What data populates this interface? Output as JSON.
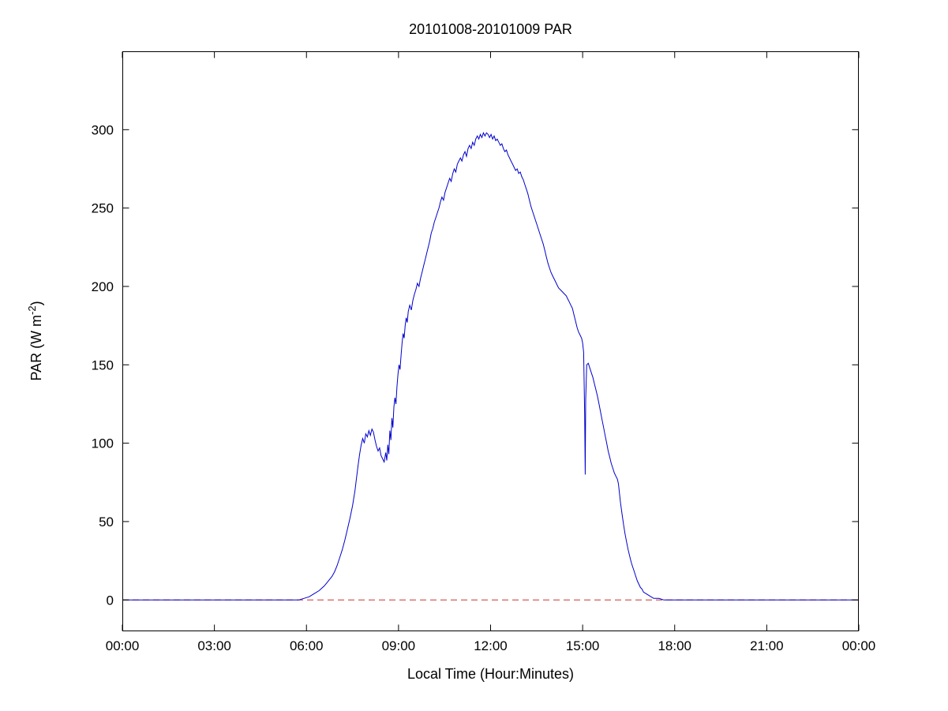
{
  "figure": {
    "background": "#ffffff"
  },
  "chart_data": {
    "type": "line",
    "title": "20101008-20101009 PAR",
    "xlabel": "Local Time (Hour:Minutes)",
    "ylabel": {
      "prefix": "PAR (W m",
      "sup": "-2",
      "suffix": ")"
    },
    "xlim": [
      0,
      1440
    ],
    "ylim": [
      -20,
      350
    ],
    "x_units": "minutes since 00:00 local",
    "grid": false,
    "legend": "none",
    "x_ticks": {
      "values": [
        0,
        180,
        360,
        540,
        720,
        900,
        1080,
        1260,
        1440
      ],
      "labels": [
        "00:00",
        "03:00",
        "06:00",
        "09:00",
        "12:00",
        "15:00",
        "18:00",
        "21:00",
        "00:00"
      ]
    },
    "y_ticks": {
      "values": [
        0,
        50,
        100,
        150,
        200,
        250,
        300
      ],
      "labels": [
        "0",
        "50",
        "100",
        "150",
        "200",
        "250",
        "300"
      ]
    },
    "zero_line": {
      "y": 0,
      "style": "dashed",
      "color": "#cc3333"
    },
    "series": [
      {
        "name": "PAR",
        "color": "#0000cc",
        "points": [
          [
            0,
            0
          ],
          [
            60,
            0
          ],
          [
            120,
            0
          ],
          [
            180,
            0
          ],
          [
            240,
            0
          ],
          [
            300,
            0
          ],
          [
            330,
            0
          ],
          [
            345,
            0
          ],
          [
            355,
            1
          ],
          [
            365,
            2
          ],
          [
            375,
            4
          ],
          [
            385,
            6
          ],
          [
            395,
            9
          ],
          [
            400,
            11
          ],
          [
            405,
            13
          ],
          [
            410,
            15
          ],
          [
            415,
            18
          ],
          [
            420,
            22
          ],
          [
            425,
            27
          ],
          [
            430,
            32
          ],
          [
            435,
            38
          ],
          [
            440,
            45
          ],
          [
            445,
            52
          ],
          [
            450,
            60
          ],
          [
            455,
            70
          ],
          [
            458,
            78
          ],
          [
            461,
            86
          ],
          [
            464,
            93
          ],
          [
            467,
            99
          ],
          [
            470,
            103
          ],
          [
            473,
            100
          ],
          [
            476,
            106
          ],
          [
            479,
            104
          ],
          [
            482,
            108
          ],
          [
            485,
            105
          ],
          [
            488,
            109
          ],
          [
            491,
            107
          ],
          [
            494,
            102
          ],
          [
            497,
            98
          ],
          [
            500,
            95
          ],
          [
            503,
            97
          ],
          [
            506,
            92
          ],
          [
            509,
            90
          ],
          [
            512,
            88
          ],
          [
            515,
            94
          ],
          [
            517,
            89
          ],
          [
            519,
            99
          ],
          [
            521,
            93
          ],
          [
            523,
            108
          ],
          [
            525,
            102
          ],
          [
            527,
            116
          ],
          [
            529,
            110
          ],
          [
            531,
            123
          ],
          [
            533,
            129
          ],
          [
            535,
            125
          ],
          [
            537,
            136
          ],
          [
            539,
            144
          ],
          [
            541,
            150
          ],
          [
            543,
            147
          ],
          [
            545,
            156
          ],
          [
            547,
            164
          ],
          [
            549,
            170
          ],
          [
            551,
            167
          ],
          [
            553,
            175
          ],
          [
            555,
            180
          ],
          [
            557,
            177
          ],
          [
            559,
            184
          ],
          [
            562,
            188
          ],
          [
            565,
            185
          ],
          [
            568,
            191
          ],
          [
            571,
            195
          ],
          [
            574,
            198
          ],
          [
            577,
            202
          ],
          [
            580,
            200
          ],
          [
            583,
            205
          ],
          [
            586,
            209
          ],
          [
            589,
            213
          ],
          [
            592,
            217
          ],
          [
            595,
            221
          ],
          [
            598,
            225
          ],
          [
            601,
            229
          ],
          [
            604,
            234
          ],
          [
            607,
            237
          ],
          [
            610,
            241
          ],
          [
            613,
            244
          ],
          [
            616,
            247
          ],
          [
            619,
            250
          ],
          [
            622,
            254
          ],
          [
            625,
            257
          ],
          [
            628,
            255
          ],
          [
            631,
            260
          ],
          [
            634,
            263
          ],
          [
            637,
            266
          ],
          [
            640,
            269
          ],
          [
            643,
            267
          ],
          [
            646,
            272
          ],
          [
            649,
            275
          ],
          [
            652,
            273
          ],
          [
            655,
            278
          ],
          [
            658,
            280
          ],
          [
            661,
            282
          ],
          [
            664,
            280
          ],
          [
            667,
            284
          ],
          [
            670,
            286
          ],
          [
            673,
            283
          ],
          [
            676,
            288
          ],
          [
            679,
            290
          ],
          [
            682,
            288
          ],
          [
            685,
            292
          ],
          [
            688,
            290
          ],
          [
            691,
            294
          ],
          [
            694,
            296
          ],
          [
            697,
            294
          ],
          [
            700,
            297
          ],
          [
            703,
            295
          ],
          [
            706,
            298
          ],
          [
            709,
            296
          ],
          [
            712,
            298
          ],
          [
            715,
            297
          ],
          [
            718,
            295
          ],
          [
            721,
            297
          ],
          [
            724,
            294
          ],
          [
            727,
            296
          ],
          [
            730,
            293
          ],
          [
            733,
            294
          ],
          [
            736,
            292
          ],
          [
            739,
            290
          ],
          [
            742,
            291
          ],
          [
            745,
            288
          ],
          [
            748,
            286
          ],
          [
            751,
            287
          ],
          [
            754,
            284
          ],
          [
            757,
            282
          ],
          [
            760,
            280
          ],
          [
            763,
            278
          ],
          [
            766,
            276
          ],
          [
            769,
            274
          ],
          [
            772,
            275
          ],
          [
            775,
            272
          ],
          [
            778,
            273
          ],
          [
            781,
            270
          ],
          [
            784,
            268
          ],
          [
            787,
            265
          ],
          [
            790,
            262
          ],
          [
            793,
            259
          ],
          [
            796,
            255
          ],
          [
            799,
            251
          ],
          [
            802,
            248
          ],
          [
            805,
            245
          ],
          [
            808,
            242
          ],
          [
            811,
            239
          ],
          [
            814,
            236
          ],
          [
            817,
            233
          ],
          [
            820,
            230
          ],
          [
            823,
            227
          ],
          [
            826,
            223
          ],
          [
            829,
            219
          ],
          [
            832,
            215
          ],
          [
            835,
            212
          ],
          [
            838,
            209
          ],
          [
            841,
            207
          ],
          [
            844,
            205
          ],
          [
            847,
            203
          ],
          [
            850,
            201
          ],
          [
            853,
            199
          ],
          [
            856,
            198
          ],
          [
            859,
            197
          ],
          [
            862,
            196
          ],
          [
            865,
            195
          ],
          [
            868,
            194
          ],
          [
            871,
            192
          ],
          [
            874,
            190
          ],
          [
            877,
            188
          ],
          [
            880,
            186
          ],
          [
            883,
            182
          ],
          [
            886,
            178
          ],
          [
            889,
            174
          ],
          [
            892,
            171
          ],
          [
            895,
            169
          ],
          [
            898,
            167
          ],
          [
            900,
            164
          ],
          [
            902,
            158
          ],
          [
            904,
            118
          ],
          [
            905,
            80
          ],
          [
            906,
            128
          ],
          [
            908,
            150
          ],
          [
            911,
            151
          ],
          [
            914,
            148
          ],
          [
            917,
            145
          ],
          [
            920,
            142
          ],
          [
            923,
            138
          ],
          [
            926,
            134
          ],
          [
            929,
            130
          ],
          [
            932,
            125
          ],
          [
            935,
            120
          ],
          [
            938,
            115
          ],
          [
            941,
            110
          ],
          [
            944,
            105
          ],
          [
            947,
            100
          ],
          [
            950,
            95
          ],
          [
            953,
            91
          ],
          [
            956,
            87
          ],
          [
            959,
            84
          ],
          [
            962,
            81
          ],
          [
            965,
            79
          ],
          [
            968,
            77
          ],
          [
            970,
            74
          ],
          [
            972,
            68
          ],
          [
            974,
            62
          ],
          [
            977,
            55
          ],
          [
            980,
            48
          ],
          [
            983,
            42
          ],
          [
            986,
            37
          ],
          [
            989,
            32
          ],
          [
            992,
            28
          ],
          [
            995,
            24
          ],
          [
            998,
            21
          ],
          [
            1001,
            18
          ],
          [
            1004,
            15
          ],
          [
            1007,
            12
          ],
          [
            1010,
            10
          ],
          [
            1013,
            8
          ],
          [
            1016,
            7
          ],
          [
            1019,
            5
          ],
          [
            1024,
            4
          ],
          [
            1029,
            3
          ],
          [
            1034,
            2
          ],
          [
            1039,
            1
          ],
          [
            1049,
            1
          ],
          [
            1059,
            0
          ],
          [
            1080,
            0
          ],
          [
            1110,
            0
          ],
          [
            1140,
            0
          ],
          [
            1170,
            0
          ],
          [
            1200,
            0
          ],
          [
            1230,
            0
          ],
          [
            1260,
            0
          ],
          [
            1290,
            0
          ],
          [
            1320,
            0
          ],
          [
            1350,
            0
          ],
          [
            1380,
            0
          ],
          [
            1410,
            0
          ],
          [
            1440,
            0
          ]
        ]
      }
    ]
  }
}
